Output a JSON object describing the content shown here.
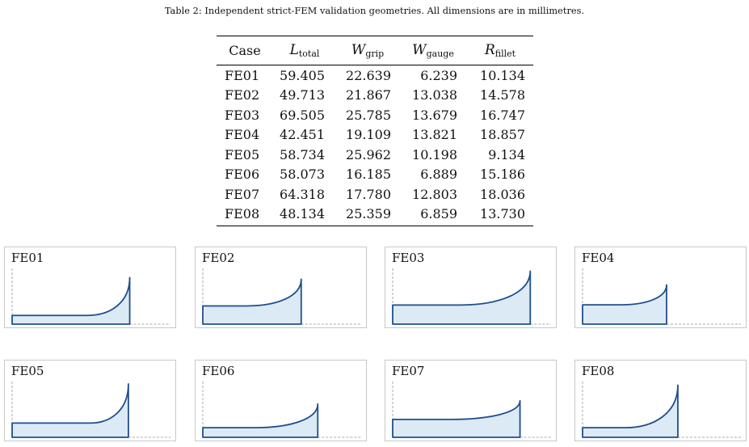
{
  "caption": "Table 2: Independent strict-FEM validation geometries. All dimensions are in millimetres.",
  "table": {
    "headers": {
      "case": "Case",
      "l_total": {
        "symbol": "L",
        "sub": "total"
      },
      "w_grip": {
        "symbol": "W",
        "sub": "grip"
      },
      "w_gauge": {
        "symbol": "W",
        "sub": "gauge"
      },
      "r_fillet": {
        "symbol": "R",
        "sub": "fillet"
      }
    },
    "rows": [
      {
        "case": "FE01",
        "l_total": "59.405",
        "w_grip": "22.639",
        "w_gauge": "6.239",
        "r_fillet": "10.134"
      },
      {
        "case": "FE02",
        "l_total": "49.713",
        "w_grip": "21.867",
        "w_gauge": "13.038",
        "r_fillet": "14.578"
      },
      {
        "case": "FE03",
        "l_total": "69.505",
        "w_grip": "25.785",
        "w_gauge": "13.679",
        "r_fillet": "16.747"
      },
      {
        "case": "FE04",
        "l_total": "42.451",
        "w_grip": "19.109",
        "w_gauge": "13.821",
        "r_fillet": "18.857"
      },
      {
        "case": "FE05",
        "l_total": "58.734",
        "w_grip": "25.962",
        "w_gauge": "10.198",
        "r_fillet": "9.134"
      },
      {
        "case": "FE06",
        "l_total": "58.073",
        "w_grip": "16.185",
        "w_gauge": "6.889",
        "r_fillet": "15.186"
      },
      {
        "case": "FE07",
        "l_total": "64.318",
        "w_grip": "17.780",
        "w_gauge": "12.803",
        "r_fillet": "18.036"
      },
      {
        "case": "FE08",
        "l_total": "48.134",
        "w_grip": "25.359",
        "w_gauge": "6.859",
        "r_fillet": "13.730"
      }
    ]
  },
  "panels": [
    {
      "title": "FE01"
    },
    {
      "title": "FE02"
    },
    {
      "title": "FE03"
    },
    {
      "title": "FE04"
    },
    {
      "title": "FE05"
    },
    {
      "title": "FE06"
    },
    {
      "title": "FE07"
    },
    {
      "title": "FE08"
    }
  ],
  "colors": {
    "outline": "#1f4e8c",
    "fill": "#dceaf6",
    "dashed": "#aaaaaa",
    "panel_border": "#c8c8c8"
  }
}
